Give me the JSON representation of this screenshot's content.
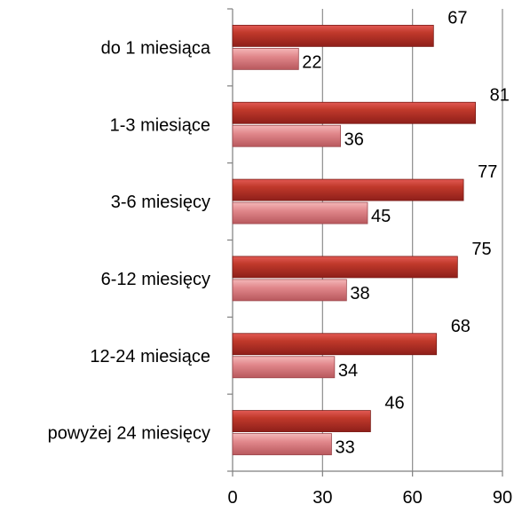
{
  "chart_data": {
    "type": "bar",
    "orientation": "horizontal",
    "categories": [
      "do 1 miesiąca",
      "1-3 miesiące",
      "3-6 miesięcy",
      "6-12 miesięcy",
      "12-24 miesiące",
      "powyżej 24 miesięcy"
    ],
    "series": [
      {
        "values": [
          67,
          81,
          77,
          75,
          68,
          46
        ],
        "color": "#c0392b"
      },
      {
        "values": [
          22,
          36,
          45,
          38,
          34,
          33
        ],
        "color": "#e0868a"
      }
    ],
    "x_ticks": [
      "0",
      "30",
      "60",
      "90"
    ],
    "xlim": [
      0,
      90
    ],
    "grid": true,
    "legend": "none",
    "title": "",
    "xlabel": "",
    "ylabel": ""
  }
}
